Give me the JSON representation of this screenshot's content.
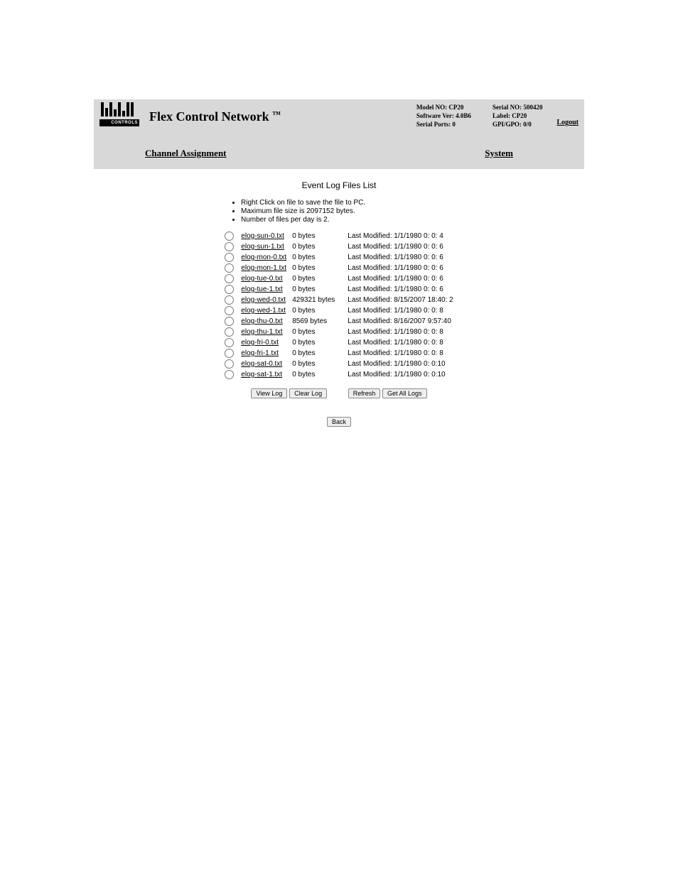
{
  "header": {
    "logo_text": "CONTROLS",
    "title_main": "Flex Control Network ",
    "title_tm": "™",
    "info_left": {
      "model_no_label": "Model NO:",
      "model_no": "CP20",
      "software_ver_label": "Software Ver:",
      "software_ver": "4.0B6",
      "serial_ports_label": "Serial Ports:",
      "serial_ports": "0"
    },
    "info_right": {
      "serial_no_label": "Serial NO:",
      "serial_no": "500420",
      "label_label": "Label:",
      "label": "CP20",
      "gpigpo_label": "GPI/GPO:",
      "gpigpo": "0/0"
    },
    "logout_label": "Logout"
  },
  "nav": {
    "channel_assignment": "Channel Assignment",
    "system": "System"
  },
  "content": {
    "section_title": "Event Log Files List",
    "hints": [
      "Right Click on file to save the file to PC.",
      "Maximum file size is 2097152 bytes.",
      "Number of files per day is 2."
    ],
    "files": [
      {
        "name": "elog-sun-0.txt",
        "size": "0 bytes",
        "modified": "Last Modified: 1/1/1980 0: 0: 4"
      },
      {
        "name": "elog-sun-1.txt",
        "size": "0 bytes",
        "modified": "Last Modified: 1/1/1980 0: 0: 6"
      },
      {
        "name": "elog-mon-0.txt",
        "size": "0 bytes",
        "modified": "Last Modified: 1/1/1980 0: 0: 6"
      },
      {
        "name": "elog-mon-1.txt",
        "size": "0 bytes",
        "modified": "Last Modified: 1/1/1980 0: 0: 6"
      },
      {
        "name": "elog-tue-0.txt",
        "size": "0 bytes",
        "modified": "Last Modified: 1/1/1980 0: 0: 6"
      },
      {
        "name": "elog-tue-1.txt",
        "size": "0 bytes",
        "modified": "Last Modified: 1/1/1980 0: 0: 6"
      },
      {
        "name": "elog-wed-0.txt",
        "size": "429321 bytes",
        "modified": "Last Modified: 8/15/2007 18:40: 2"
      },
      {
        "name": "elog-wed-1.txt",
        "size": "0 bytes",
        "modified": "Last Modified: 1/1/1980 0: 0: 8"
      },
      {
        "name": "elog-thu-0.txt",
        "size": "8569 bytes",
        "modified": "Last Modified: 8/16/2007 9:57:40"
      },
      {
        "name": "elog-thu-1.txt",
        "size": "0 bytes",
        "modified": "Last Modified: 1/1/1980 0: 0: 8"
      },
      {
        "name": "elog-fri-0.txt",
        "size": "0 bytes",
        "modified": "Last Modified: 1/1/1980 0: 0: 8"
      },
      {
        "name": "elog-fri-1.txt",
        "size": "0 bytes",
        "modified": "Last Modified: 1/1/1980 0: 0: 8"
      },
      {
        "name": "elog-sat-0.txt",
        "size": "0 bytes",
        "modified": "Last Modified: 1/1/1980 0: 0:10"
      },
      {
        "name": "elog-sat-1.txt",
        "size": "0 bytes",
        "modified": "Last Modified: 1/1/1980 0: 0:10"
      }
    ],
    "buttons": {
      "view_log": "View Log",
      "clear_log": "Clear Log",
      "refresh": "Refresh",
      "get_all_logs": "Get All Logs",
      "back": "Back"
    }
  },
  "colors": {
    "panel_bg": "#d8d8d8",
    "content_bg": "#ffffff",
    "text": "#000000"
  }
}
